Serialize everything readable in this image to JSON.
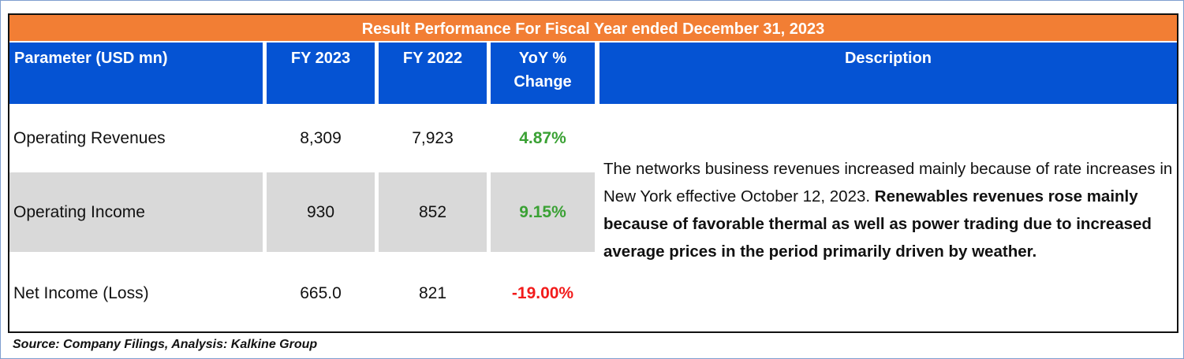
{
  "title": "Result Performance For Fiscal Year ended December 31, 2023",
  "headers": [
    "Parameter  (USD mn)",
    "FY 2023",
    "FY 2022",
    "YoY %\nChange",
    "Description"
  ],
  "rows": [
    {
      "parameter": "Operating Revenues",
      "fy2023": "8,309",
      "fy2022": "7,923",
      "yoy": "4.87%"
    },
    {
      "parameter": "Operating Income",
      "fy2023": "930",
      "fy2022": "852",
      "yoy": "9.15%"
    },
    {
      "parameter": "Net Income (Loss)",
      "fy2023": "665.0",
      "fy2022": "821",
      "yoy": "-19.00%"
    }
  ],
  "description": {
    "normal": "The networks business revenues increased mainly because of rate increases in New York effective October 12, 2023. ",
    "bold": "Renewables revenues rose mainly because of favorable thermal as well as power trading due to increased average prices in the period primarily driven by weather."
  },
  "source": "Source: Company Filings, Analysis: Kalkine Group",
  "colors": {
    "title_bg": "#f27e34",
    "header_bg": "#0553d3",
    "positive": "#3aa134",
    "negative": "#f21b1b",
    "row_alt": "#d9d9d9"
  }
}
